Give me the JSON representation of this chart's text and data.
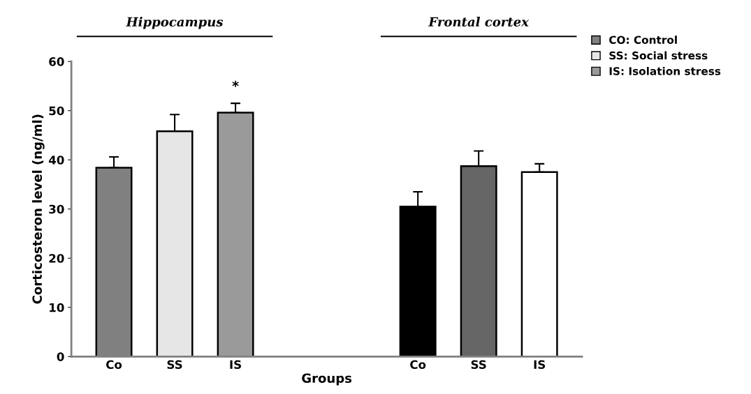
{
  "chart_data": {
    "type": "bar",
    "xlabel": "Groups",
    "ylabel": "Corticosteron level (ng/ml)",
    "categories": [
      "Co",
      "SS",
      "IS",
      null,
      null,
      "Co",
      "SS",
      "IS"
    ],
    "series": [
      {
        "name": "CO: Control",
        "color": "#808080",
        "colors": [
          "#808080",
          null,
          null,
          null,
          null,
          "#000000",
          null,
          null
        ],
        "values": [
          38.4,
          null,
          null,
          null,
          null,
          30.5,
          null,
          null
        ],
        "errors": [
          2.2,
          null,
          null,
          null,
          null,
          3.0,
          null,
          null
        ]
      },
      {
        "name": "SS: Social stress",
        "color": "#e6e6e6",
        "colors": [
          null,
          "#e6e6e6",
          null,
          null,
          null,
          null,
          "#666666",
          null
        ],
        "values": [
          null,
          45.8,
          null,
          null,
          null,
          null,
          38.7,
          null
        ],
        "errors": [
          null,
          3.4,
          null,
          null,
          null,
          null,
          3.1,
          null
        ]
      },
      {
        "name": "IS: Isolation stress",
        "color": "#9a9a9a",
        "colors": [
          null,
          null,
          "#9a9a9a",
          null,
          null,
          null,
          null,
          "#ffffff"
        ],
        "values": [
          null,
          null,
          49.6,
          null,
          null,
          null,
          null,
          37.5
        ],
        "errors": [
          null,
          null,
          1.9,
          null,
          null,
          null,
          null,
          1.7
        ]
      }
    ],
    "ylim": [
      0,
      60
    ],
    "yticks": [
      0,
      10,
      20,
      30,
      40,
      50,
      60
    ],
    "grid": false,
    "legend": "top right",
    "annotations": [
      "Hippocampus",
      "Frontal cortex",
      "*"
    ]
  }
}
